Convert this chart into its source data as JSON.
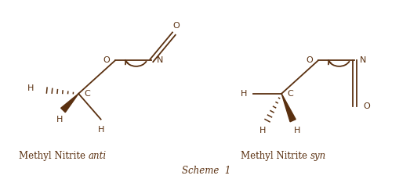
{
  "bg_color": "#ffffff",
  "mol_color": "#5a3010",
  "fig_width": 5.23,
  "fig_height": 2.29,
  "label1": "Methyl Nitrite ",
  "label1_italic": "anti",
  "label2": "Methyl Nitrite ",
  "label2_italic": "syn",
  "scheme_label": "Scheme  1"
}
